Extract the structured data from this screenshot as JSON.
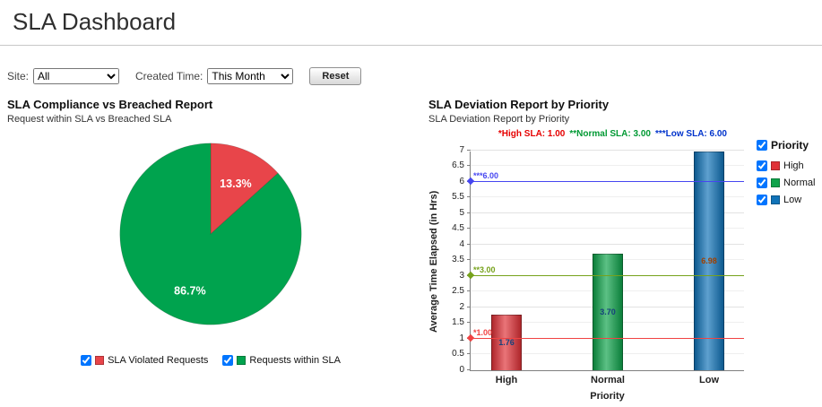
{
  "app": {
    "title": "SLA Dashboard"
  },
  "filters": {
    "site_label": "Site:",
    "site_value": "All",
    "created_label": "Created Time:",
    "created_value": "This Month",
    "reset_label": "Reset"
  },
  "chart_data": [
    {
      "type": "pie",
      "title": "SLA Compliance vs Breached Report",
      "subtitle": "Request within SLA vs Breached SLA",
      "labels": [
        "SLA Violated Requests",
        "Requests within SLA"
      ],
      "values_pct": [
        13.3,
        86.7
      ],
      "pct_labels": [
        "13.3%",
        "86.7%"
      ],
      "colors": [
        "#e8454a",
        "#00a34e"
      ],
      "legend_position": "bottom",
      "legend_checked": [
        true,
        true
      ]
    },
    {
      "type": "bar",
      "title": "SLA Deviation Report by Priority",
      "subtitle": "SLA Deviation Report by Priority",
      "categories": [
        "High",
        "Normal",
        "Low"
      ],
      "values": [
        1.76,
        3.7,
        6.98
      ],
      "bar_labels": [
        "1.76",
        "3.70",
        "6.98"
      ],
      "bar_label_colors": [
        "#16417c",
        "#16417c",
        "#a04000"
      ],
      "colors": [
        "#e03238",
        "#0fa34b",
        "#1173b8"
      ],
      "xlabel": "Priority",
      "ylabel": "Average Time Elapsed (in Hrs)",
      "ylim": [
        0,
        7
      ],
      "yticks": [
        "0",
        "0.5",
        "1",
        "1.5",
        "2",
        "2.5",
        "3",
        "3.5",
        "4",
        "4.5",
        "5",
        "5.5",
        "6",
        "6.5",
        "7"
      ],
      "grid": true,
      "reference_lines": [
        {
          "label": "*1.00",
          "value": 1.0,
          "color": "#f04343"
        },
        {
          "label": "**3.00",
          "value": 3.0,
          "color": "#76a21b"
        },
        {
          "label": "***6.00",
          "value": 6.0,
          "color": "#4646f0"
        }
      ],
      "sla_notes": [
        {
          "text": "*High SLA: 1.00",
          "color": "#e60000"
        },
        {
          "text": "**Normal SLA: 3.00",
          "color": "#009933"
        },
        {
          "text": "***Low SLA: 6.00",
          "color": "#0033cc"
        }
      ],
      "legend_title": "Priority",
      "legend": [
        "High",
        "Normal",
        "Low"
      ],
      "legend_position": "right",
      "legend_checked": [
        true,
        true,
        true
      ],
      "legend_title_checked": true
    }
  ]
}
